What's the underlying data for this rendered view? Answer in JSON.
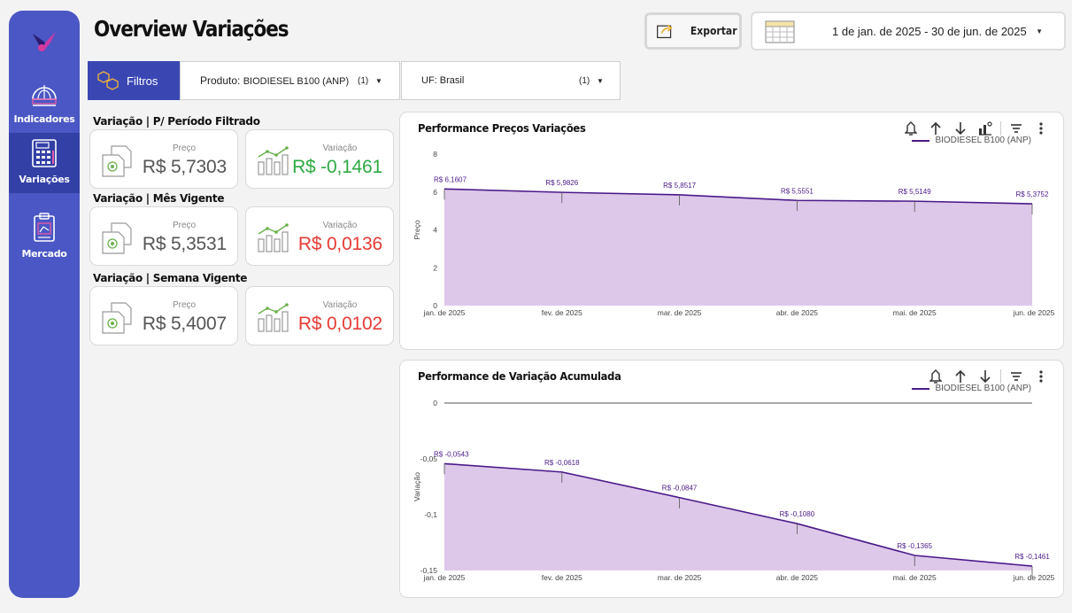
{
  "header": {
    "title": "Overview Variações",
    "export_label": "Exportar",
    "date_range": "1 de jan. de 2025 - 30 de jun. de 2025"
  },
  "sidebar": {
    "items": [
      {
        "label": "Indicadores"
      },
      {
        "label": "Variações",
        "active": true
      },
      {
        "label": "Mercado"
      }
    ]
  },
  "filters": {
    "tag_label": "Filtros",
    "produto": {
      "prefix": "Produto",
      "value": "BIODIESEL B100 (ANP)",
      "count": "(1)"
    },
    "uf": {
      "prefix": "UF",
      "value": "Brasil",
      "count": "(1)"
    }
  },
  "sections": [
    {
      "title": "Variação | P/ Período Filtrado",
      "preco_label": "Preço",
      "preco": "R$ 5,7303",
      "var_label": "Variação",
      "variacao": "R$ -0,1461",
      "var_color": "green"
    },
    {
      "title": "Variação | Mês Vigente",
      "preco_label": "Preço",
      "preco": "R$ 5,3531",
      "var_label": "Variação",
      "variacao": "R$ 0,0136",
      "var_color": "red"
    },
    {
      "title": "Variação | Semana Vigente",
      "preco_label": "Preço",
      "preco": "R$ 5,4007",
      "var_label": "Variação",
      "variacao": "R$ 0,0102",
      "var_color": "red"
    }
  ],
  "colors": {
    "sidebar": "#4a57c4",
    "accent": "#3a47b3",
    "series_line": "#4a1a8a",
    "series_fill": "#ddc8e9",
    "green": "#2eaa42",
    "red": "#e53b35"
  },
  "chart_data": [
    {
      "type": "area",
      "title": "Performance Preços Variações",
      "ylabel": "Preço",
      "xlabel": "",
      "categories": [
        "jan. de 2025",
        "fev. de 2025",
        "mar. de 2025",
        "abr. de 2025",
        "mai. de 2025",
        "jun. de 2025"
      ],
      "series": [
        {
          "name": "BIODIESEL B100 (ANP)",
          "values": [
            6.1607,
            5.9826,
            5.8517,
            5.5551,
            5.5149,
            5.3752
          ]
        }
      ],
      "data_labels": [
        "R$ 6,1607",
        "R$ 5,9826",
        "R$ 5,8517",
        "R$ 5,5551",
        "R$ 5,5149",
        "R$ 5,3752"
      ],
      "ylim": [
        0,
        8
      ],
      "yticks": [
        0,
        2,
        4,
        6,
        8
      ],
      "ytick_labels": [
        "0",
        "2",
        "4",
        "6",
        "8"
      ],
      "grid": false,
      "legend_position": "top-right"
    },
    {
      "type": "area",
      "title": "Performance de Variação Acumulada",
      "ylabel": "Variação",
      "xlabel": "",
      "categories": [
        "jan. de 2025",
        "fev. de 2025",
        "mar. de 2025",
        "abr. de 2025",
        "mai. de 2025",
        "jun. de 2025"
      ],
      "series": [
        {
          "name": "BIODIESEL B100 (ANP)",
          "values": [
            -0.0543,
            -0.0618,
            -0.0847,
            -0.108,
            -0.1365,
            -0.1461
          ]
        }
      ],
      "data_labels": [
        "R$ -0,0543",
        "R$ -0,0618",
        "R$ -0,0847",
        "R$ -0,1080",
        "R$ -0,1365",
        "R$ -0,1461"
      ],
      "ylim": [
        -0.15,
        0
      ],
      "yticks": [
        0,
        -0.05,
        -0.1,
        -0.15
      ],
      "ytick_labels": [
        "0",
        "-0,05",
        "-0,1",
        "-0,15"
      ],
      "grid": false,
      "legend_position": "top-right"
    }
  ]
}
